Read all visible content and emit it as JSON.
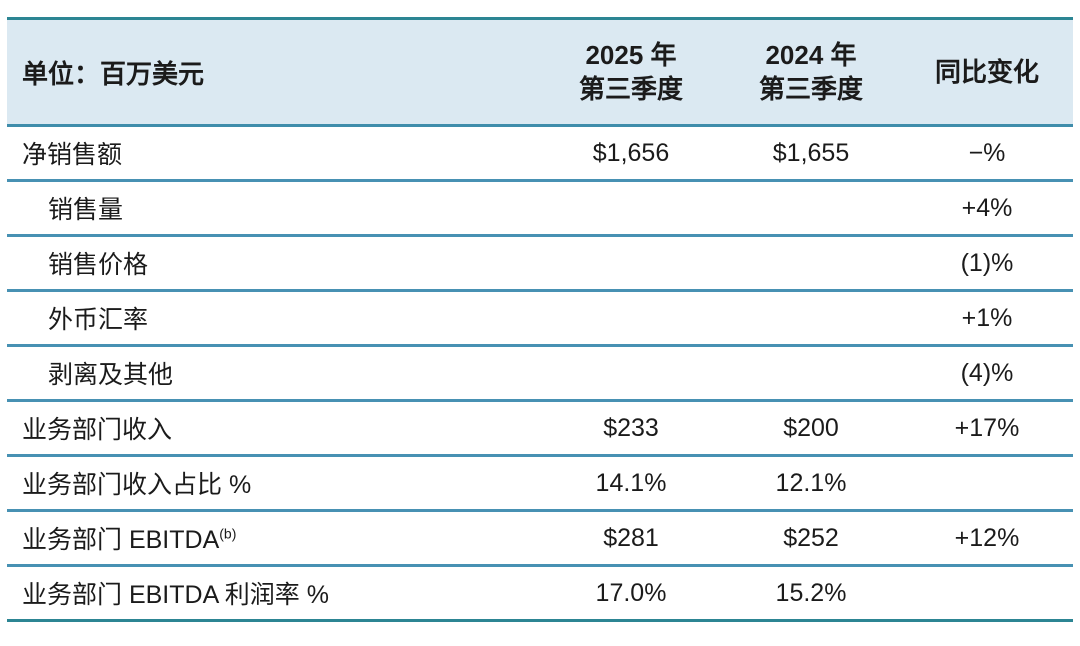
{
  "table": {
    "header": {
      "unit_label": "单位：百万美元",
      "col_2025_line1": "2025 年",
      "col_2025_line2": "第三季度",
      "col_2024_line1": "2024 年",
      "col_2024_line2": "第三季度",
      "col_yoy": "同比变化"
    },
    "rows": [
      {
        "label": "净销售额",
        "indent": false,
        "sup": "",
        "v2025": "$1,656",
        "v2024": "$1,655",
        "yoy": "−%"
      },
      {
        "label": "销售量",
        "indent": true,
        "sup": "",
        "v2025": "",
        "v2024": "",
        "yoy": "+4%"
      },
      {
        "label": "销售价格",
        "indent": true,
        "sup": "",
        "v2025": "",
        "v2024": "",
        "yoy": "(1)%"
      },
      {
        "label": "外币汇率",
        "indent": true,
        "sup": "",
        "v2025": "",
        "v2024": "",
        "yoy": "+1%"
      },
      {
        "label": "剥离及其他",
        "indent": true,
        "sup": "",
        "v2025": "",
        "v2024": "",
        "yoy": "(4)%"
      },
      {
        "label": "业务部门收入",
        "indent": false,
        "sup": "",
        "v2025": "$233",
        "v2024": "$200",
        "yoy": "+17%"
      },
      {
        "label": "业务部门收入占比 %",
        "indent": false,
        "sup": "",
        "v2025": "14.1%",
        "v2024": "12.1%",
        "yoy": ""
      },
      {
        "label": "业务部门 EBITDA",
        "indent": false,
        "sup": "(b)",
        "v2025": "$281",
        "v2024": "$252",
        "yoy": "+12%"
      },
      {
        "label": "业务部门 EBITDA 利润率 %",
        "indent": false,
        "sup": "",
        "v2025": "17.0%",
        "v2024": "15.2%",
        "yoy": ""
      }
    ],
    "colors": {
      "header_bg": "#dbe9f2",
      "outer_border_teal": "#2c8593",
      "row_divider_blue": "#4791b3",
      "text": "#1b1b1b"
    }
  }
}
